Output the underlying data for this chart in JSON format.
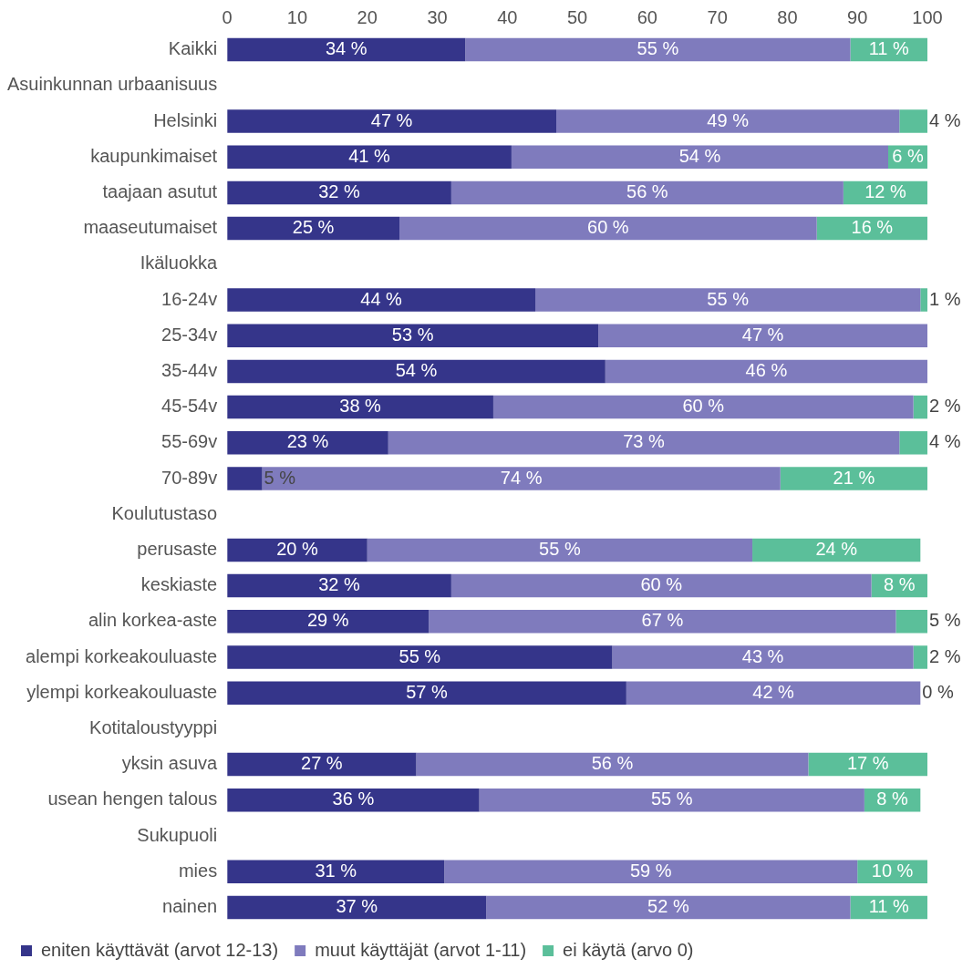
{
  "chart_data": {
    "type": "bar",
    "orientation": "horizontal",
    "stacked": true,
    "categories": [
      "Kaikki",
      "Asuinkunnan urbaanisuus",
      "Helsinki",
      "kaupunkimaiset",
      "taajaan asutut",
      "maaseutumaiset",
      "Ikäluokka",
      "16-24v",
      "25-34v",
      "35-44v",
      "45-54v",
      "55-69v",
      "70-89v",
      "Koulutustaso",
      "perusaste",
      "keskiaste",
      "alin korkea-aste",
      "alempi korkeakouluaste",
      "ylempi korkeakouluaste",
      "Kotitaloustyyppi",
      "yksin asuva",
      "usean hengen talous",
      "Sukupuoli",
      "mies",
      "nainen"
    ],
    "series": [
      {
        "name": "eniten käyttävät (arvot 12-13)",
        "color": "#35358a",
        "values": [
          34,
          null,
          47,
          40.6,
          32,
          24.6,
          null,
          44,
          53,
          54,
          38,
          23,
          5,
          null,
          20,
          32,
          28.8,
          55,
          57,
          null,
          27,
          36,
          null,
          31,
          37
        ],
        "value_labels": [
          "34 %",
          null,
          "47 %",
          "41 %",
          "32 %",
          "25 %",
          null,
          "44 %",
          "53 %",
          "54 %",
          "38 %",
          "23 %",
          "5 %",
          null,
          "20 %",
          "32 %",
          "29 %",
          "55 %",
          "57 %",
          null,
          "27 %",
          "36 %",
          null,
          "31 %",
          "37 %"
        ]
      },
      {
        "name": "muut käyttäjät (arvot 1-11)",
        "color": "#7f7bbd",
        "values": [
          55,
          null,
          49,
          53.8,
          56,
          59.6,
          null,
          55,
          47,
          46,
          60,
          73,
          74,
          null,
          55,
          60,
          66.7,
          43,
          42,
          null,
          56,
          55,
          null,
          59,
          52
        ],
        "value_labels": [
          "55 %",
          null,
          "49 %",
          "54 %",
          "56 %",
          "60 %",
          null,
          "55 %",
          "47 %",
          "46 %",
          "60 %",
          "73 %",
          "74 %",
          null,
          "55 %",
          "60 %",
          "67 %",
          "43 %",
          "42 %",
          null,
          "56 %",
          "55 %",
          null,
          "59 %",
          "52 %"
        ]
      },
      {
        "name": "ei käytä (arvo 0)",
        "color": "#5bbf9a",
        "values": [
          11,
          null,
          4,
          5.6,
          12,
          15.8,
          null,
          1,
          0,
          0,
          2,
          4,
          21,
          null,
          24,
          8,
          4.5,
          2,
          0,
          null,
          17,
          8,
          null,
          10,
          11
        ],
        "value_labels": [
          "11 %",
          null,
          "4 %",
          "6 %",
          "12 %",
          "16 %",
          null,
          "1 %",
          null,
          null,
          "2 %",
          "4 %",
          "21 %",
          null,
          "24 %",
          "8 %",
          "5 %",
          "2 %",
          "0 %",
          null,
          "17 %",
          "8 %",
          null,
          "10 %",
          "11 %"
        ]
      }
    ],
    "xlim": [
      0,
      100
    ],
    "xticks": [
      0,
      10,
      20,
      30,
      40,
      50,
      60,
      70,
      80,
      90,
      100
    ],
    "grid": false,
    "legend": "bottom left"
  }
}
